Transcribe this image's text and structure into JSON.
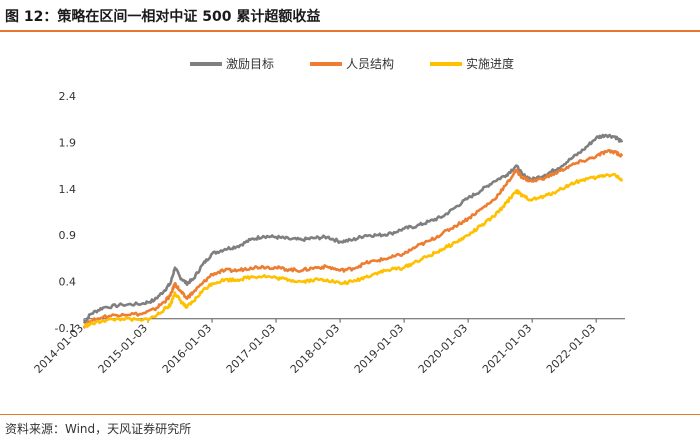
{
  "header": {
    "title": "图 12：策略在区间一相对中证 500 累计超额收益"
  },
  "footer": {
    "source": "资料来源：Wind，天风证券研究所"
  },
  "colors": {
    "accent": "#e8772e",
    "series1": "#7f7f7f",
    "series2": "#ed7d31",
    "series3": "#ffc000"
  },
  "chart_data": {
    "type": "line",
    "title": "策略在区间一相对中证 500 累计超额收益",
    "xlabel": "",
    "ylabel": "",
    "ylim": [
      -0.1,
      2.4
    ],
    "yticks": [
      -0.1,
      0.4,
      0.9,
      1.4,
      1.9,
      2.4
    ],
    "xlim": [
      2014.0,
      2022.45
    ],
    "xticks": [
      {
        "value": 2014.0,
        "label": "2014-01-03"
      },
      {
        "value": 2015.0,
        "label": "2015-01-03"
      },
      {
        "value": 2016.0,
        "label": "2016-01-03"
      },
      {
        "value": 2017.0,
        "label": "2017-01-03"
      },
      {
        "value": 2018.0,
        "label": "2018-01-03"
      },
      {
        "value": 2019.0,
        "label": "2019-01-03"
      },
      {
        "value": 2020.0,
        "label": "2020-01-03"
      },
      {
        "value": 2021.0,
        "label": "2021-01-03"
      },
      {
        "value": 2022.0,
        "label": "2022-01-03"
      }
    ],
    "legend_position": "top-center",
    "series": [
      {
        "name": "激励目标",
        "color": "#7f7f7f",
        "points": [
          [
            2014.0,
            -0.05
          ],
          [
            2014.1,
            0.05
          ],
          [
            2014.3,
            0.12
          ],
          [
            2014.6,
            0.15
          ],
          [
            2014.9,
            0.16
          ],
          [
            2015.1,
            0.2
          ],
          [
            2015.25,
            0.3
          ],
          [
            2015.35,
            0.38
          ],
          [
            2015.42,
            0.55
          ],
          [
            2015.5,
            0.45
          ],
          [
            2015.6,
            0.38
          ],
          [
            2015.7,
            0.42
          ],
          [
            2015.85,
            0.58
          ],
          [
            2016.0,
            0.7
          ],
          [
            2016.2,
            0.75
          ],
          [
            2016.4,
            0.78
          ],
          [
            2016.6,
            0.85
          ],
          [
            2016.8,
            0.89
          ],
          [
            2017.0,
            0.88
          ],
          [
            2017.2,
            0.86
          ],
          [
            2017.4,
            0.85
          ],
          [
            2017.6,
            0.87
          ],
          [
            2017.8,
            0.88
          ],
          [
            2018.0,
            0.83
          ],
          [
            2018.2,
            0.85
          ],
          [
            2018.4,
            0.9
          ],
          [
            2018.6,
            0.9
          ],
          [
            2018.8,
            0.92
          ],
          [
            2019.0,
            0.97
          ],
          [
            2019.2,
            1.0
          ],
          [
            2019.4,
            1.05
          ],
          [
            2019.6,
            1.1
          ],
          [
            2019.8,
            1.2
          ],
          [
            2020.0,
            1.3
          ],
          [
            2020.2,
            1.38
          ],
          [
            2020.4,
            1.48
          ],
          [
            2020.6,
            1.55
          ],
          [
            2020.75,
            1.65
          ],
          [
            2020.85,
            1.55
          ],
          [
            2021.0,
            1.5
          ],
          [
            2021.2,
            1.55
          ],
          [
            2021.4,
            1.62
          ],
          [
            2021.6,
            1.72
          ],
          [
            2021.8,
            1.82
          ],
          [
            2022.0,
            1.95
          ],
          [
            2022.15,
            1.98
          ],
          [
            2022.3,
            1.96
          ],
          [
            2022.4,
            1.9
          ]
        ]
      },
      {
        "name": "人员结构",
        "color": "#ed7d31",
        "points": [
          [
            2014.0,
            -0.08
          ],
          [
            2014.1,
            -0.03
          ],
          [
            2014.3,
            0.02
          ],
          [
            2014.6,
            0.05
          ],
          [
            2014.9,
            0.05
          ],
          [
            2015.1,
            0.1
          ],
          [
            2015.25,
            0.18
          ],
          [
            2015.35,
            0.25
          ],
          [
            2015.42,
            0.38
          ],
          [
            2015.5,
            0.3
          ],
          [
            2015.6,
            0.22
          ],
          [
            2015.7,
            0.28
          ],
          [
            2015.85,
            0.38
          ],
          [
            2016.0,
            0.48
          ],
          [
            2016.2,
            0.52
          ],
          [
            2016.4,
            0.52
          ],
          [
            2016.6,
            0.55
          ],
          [
            2016.8,
            0.56
          ],
          [
            2017.0,
            0.55
          ],
          [
            2017.2,
            0.53
          ],
          [
            2017.4,
            0.52
          ],
          [
            2017.6,
            0.55
          ],
          [
            2017.8,
            0.56
          ],
          [
            2018.0,
            0.52
          ],
          [
            2018.2,
            0.54
          ],
          [
            2018.4,
            0.6
          ],
          [
            2018.6,
            0.63
          ],
          [
            2018.8,
            0.66
          ],
          [
            2019.0,
            0.7
          ],
          [
            2019.2,
            0.78
          ],
          [
            2019.4,
            0.84
          ],
          [
            2019.6,
            0.92
          ],
          [
            2019.8,
            1.0
          ],
          [
            2020.0,
            1.08
          ],
          [
            2020.2,
            1.18
          ],
          [
            2020.4,
            1.28
          ],
          [
            2020.6,
            1.45
          ],
          [
            2020.75,
            1.6
          ],
          [
            2020.85,
            1.52
          ],
          [
            2021.0,
            1.48
          ],
          [
            2021.2,
            1.52
          ],
          [
            2021.4,
            1.58
          ],
          [
            2021.6,
            1.65
          ],
          [
            2021.8,
            1.7
          ],
          [
            2022.0,
            1.75
          ],
          [
            2022.15,
            1.8
          ],
          [
            2022.3,
            1.8
          ],
          [
            2022.4,
            1.75
          ]
        ]
      },
      {
        "name": "实施进度",
        "color": "#ffc000",
        "points": [
          [
            2014.0,
            -0.08
          ],
          [
            2014.1,
            -0.06
          ],
          [
            2014.3,
            -0.02
          ],
          [
            2014.6,
            0.0
          ],
          [
            2014.9,
            -0.02
          ],
          [
            2015.1,
            0.02
          ],
          [
            2015.25,
            0.1
          ],
          [
            2015.35,
            0.15
          ],
          [
            2015.42,
            0.28
          ],
          [
            2015.5,
            0.2
          ],
          [
            2015.6,
            0.12
          ],
          [
            2015.7,
            0.18
          ],
          [
            2015.85,
            0.3
          ],
          [
            2016.0,
            0.38
          ],
          [
            2016.2,
            0.42
          ],
          [
            2016.4,
            0.42
          ],
          [
            2016.6,
            0.45
          ],
          [
            2016.8,
            0.46
          ],
          [
            2017.0,
            0.44
          ],
          [
            2017.2,
            0.42
          ],
          [
            2017.4,
            0.4
          ],
          [
            2017.6,
            0.42
          ],
          [
            2017.8,
            0.42
          ],
          [
            2018.0,
            0.38
          ],
          [
            2018.2,
            0.4
          ],
          [
            2018.4,
            0.45
          ],
          [
            2018.6,
            0.5
          ],
          [
            2018.8,
            0.53
          ],
          [
            2019.0,
            0.55
          ],
          [
            2019.2,
            0.62
          ],
          [
            2019.4,
            0.68
          ],
          [
            2019.6,
            0.75
          ],
          [
            2019.8,
            0.82
          ],
          [
            2020.0,
            0.9
          ],
          [
            2020.2,
            1.0
          ],
          [
            2020.4,
            1.1
          ],
          [
            2020.6,
            1.25
          ],
          [
            2020.75,
            1.38
          ],
          [
            2020.85,
            1.32
          ],
          [
            2021.0,
            1.28
          ],
          [
            2021.2,
            1.32
          ],
          [
            2021.4,
            1.38
          ],
          [
            2021.6,
            1.45
          ],
          [
            2021.8,
            1.5
          ],
          [
            2022.0,
            1.52
          ],
          [
            2022.15,
            1.55
          ],
          [
            2022.3,
            1.55
          ],
          [
            2022.4,
            1.48
          ]
        ]
      }
    ]
  }
}
